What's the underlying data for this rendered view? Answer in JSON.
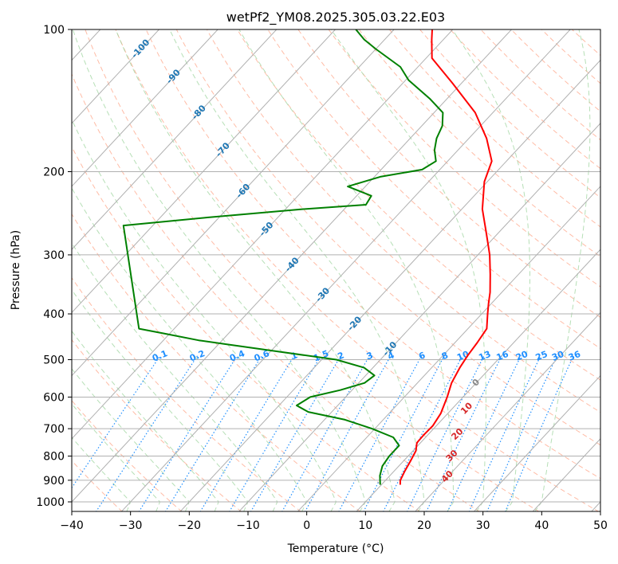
{
  "chart_data": {
    "type": "line",
    "title": "wetPf2_YM08.2025.305.03.22.E03",
    "xlabel": "Temperature (°C)",
    "ylabel": "Pressure (hPa)",
    "xlim": [
      -40,
      50
    ],
    "ylim": [
      1050,
      100
    ],
    "y_scale": "log",
    "grid": true,
    "x_ticks": [
      -40,
      -30,
      -20,
      -10,
      0,
      10,
      20,
      30,
      40,
      50
    ],
    "x_tick_labels": [
      "−40",
      "−30",
      "−20",
      "−10",
      "0",
      "10",
      "20",
      "30",
      "40",
      "50"
    ],
    "y_ticks": [
      1000,
      900,
      800,
      700,
      600,
      500,
      400,
      300,
      200,
      100
    ],
    "y_tick_labels": [
      "1000",
      "900",
      "800",
      "700",
      "600",
      "500",
      "400",
      "300",
      "200",
      "100"
    ],
    "colors": {
      "temperature": "#ff0000",
      "dewpoint": "#008000",
      "isotherm": "#b0b0b0",
      "dry_adiabat": "#ff9f80",
      "moist_adiabat": "#9ed49e",
      "mixing_ratio": "#1f8fff",
      "isotherm_label": "#1f77b4",
      "mixing_ratio_label": "#1f8fff",
      "moist_label_zero": "#888888",
      "moist_label": "#d62728"
    },
    "series": [
      {
        "key": "temperature",
        "points": [
          {
            "p": 920,
            "t": 13.2
          },
          {
            "p": 900,
            "t": 12.5
          },
          {
            "p": 860,
            "t": 11.8
          },
          {
            "p": 820,
            "t": 11.2
          },
          {
            "p": 780,
            "t": 10.5
          },
          {
            "p": 750,
            "t": 9.4
          },
          {
            "p": 720,
            "t": 9.3
          },
          {
            "p": 690,
            "t": 9.4
          },
          {
            "p": 650,
            "t": 8.8
          },
          {
            "p": 600,
            "t": 7.3
          },
          {
            "p": 560,
            "t": 5.8
          },
          {
            "p": 520,
            "t": 4.8
          },
          {
            "p": 490,
            "t": 4.2
          },
          {
            "p": 460,
            "t": 3.8
          },
          {
            "p": 430,
            "t": 3.2
          },
          {
            "p": 400,
            "t": 1.0
          },
          {
            "p": 380,
            "t": -0.5
          },
          {
            "p": 360,
            "t": -2.0
          },
          {
            "p": 330,
            "t": -4.8
          },
          {
            "p": 300,
            "t": -8.0
          },
          {
            "p": 270,
            "t": -12.0
          },
          {
            "p": 240,
            "t": -16.5
          },
          {
            "p": 210,
            "t": -20.5
          },
          {
            "p": 190,
            "t": -22.5
          },
          {
            "p": 170,
            "t": -27.0
          },
          {
            "p": 150,
            "t": -33.0
          },
          {
            "p": 130,
            "t": -41.5
          },
          {
            "p": 115,
            "t": -49.0
          },
          {
            "p": 105,
            "t": -52.0
          },
          {
            "p": 100,
            "t": -53.5
          }
        ]
      },
      {
        "key": "dewpoint",
        "points": [
          {
            "p": 920,
            "t": 9.8
          },
          {
            "p": 880,
            "t": 8.3
          },
          {
            "p": 840,
            "t": 7.2
          },
          {
            "p": 800,
            "t": 6.8
          },
          {
            "p": 760,
            "t": 6.8
          },
          {
            "p": 730,
            "t": 4.5
          },
          {
            "p": 700,
            "t": -0.5
          },
          {
            "p": 670,
            "t": -6.5
          },
          {
            "p": 645,
            "t": -14.0
          },
          {
            "p": 625,
            "t": -17.0
          },
          {
            "p": 600,
            "t": -16.0
          },
          {
            "p": 580,
            "t": -12.0
          },
          {
            "p": 560,
            "t": -9.0
          },
          {
            "p": 540,
            "t": -8.5
          },
          {
            "p": 520,
            "t": -11.5
          },
          {
            "p": 500,
            "t": -17.5
          },
          {
            "p": 480,
            "t": -29.0
          },
          {
            "p": 465,
            "t": -38.0
          },
          {
            "p": 455,
            "t": -44.0
          },
          {
            "p": 440,
            "t": -51.0
          },
          {
            "p": 430,
            "t": -56.0
          },
          {
            "p": 260,
            "t": -75.0
          },
          {
            "p": 250,
            "t": -62.0
          },
          {
            "p": 240,
            "t": -47.0
          },
          {
            "p": 235,
            "t": -37.0
          },
          {
            "p": 225,
            "t": -37.5
          },
          {
            "p": 215,
            "t": -43.0
          },
          {
            "p": 205,
            "t": -39.0
          },
          {
            "p": 198,
            "t": -33.0
          },
          {
            "p": 190,
            "t": -32.0
          },
          {
            "p": 180,
            "t": -34.0
          },
          {
            "p": 170,
            "t": -35.5
          },
          {
            "p": 160,
            "t": -36.5
          },
          {
            "p": 150,
            "t": -38.5
          },
          {
            "p": 140,
            "t": -43.0
          },
          {
            "p": 128,
            "t": -49.5
          },
          {
            "p": 120,
            "t": -53.0
          },
          {
            "p": 110,
            "t": -60.0
          },
          {
            "p": 105,
            "t": -63.5
          },
          {
            "p": 100,
            "t": -66.5
          }
        ]
      }
    ],
    "isotherm_labels": [
      {
        "t": -100,
        "p": 110,
        "text": "-100"
      },
      {
        "t": -90,
        "p": 126,
        "text": "-90"
      },
      {
        "t": -80,
        "p": 150,
        "text": "-80"
      },
      {
        "t": -70,
        "p": 180,
        "text": "-70"
      },
      {
        "t": -60,
        "p": 220,
        "text": "-60"
      },
      {
        "t": -50,
        "p": 265,
        "text": "-50"
      },
      {
        "t": -40,
        "p": 315,
        "text": "-40"
      },
      {
        "t": -30,
        "p": 365,
        "text": "-30"
      },
      {
        "t": -20,
        "p": 420,
        "text": "-20"
      },
      {
        "t": -10,
        "p": 475,
        "text": "-10"
      }
    ],
    "mixing_ratio_labels": [
      "0.1",
      "0.2",
      "0.4",
      "0.6",
      "1",
      "1.5",
      "2",
      "3",
      "4",
      "6",
      "8",
      "10",
      "13",
      "16",
      "20",
      "25",
      "30",
      "36"
    ],
    "moist_adiabat_labels": [
      "0",
      "10",
      "20",
      "30",
      "40"
    ]
  }
}
